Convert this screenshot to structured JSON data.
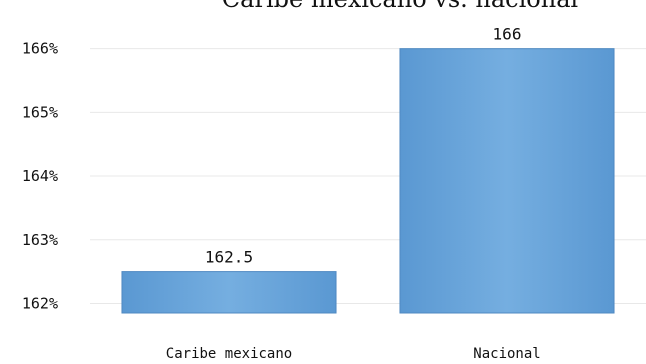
{
  "chart_data": {
    "type": "bar",
    "title": "Caribe mexicano vs. nacional",
    "categories": [
      "Caribe mexicano",
      "Nacional"
    ],
    "values": [
      162.5,
      166
    ],
    "data_labels": [
      "162.5",
      "166"
    ],
    "y_ticks": [
      162,
      163,
      164,
      165,
      166
    ],
    "y_tick_labels": [
      "162%",
      "163%",
      "164%",
      "165%",
      "166%"
    ],
    "ylim": [
      161.85,
      166.45
    ],
    "grid": true,
    "legend": "none",
    "bar_color": "#5b9bd5"
  }
}
